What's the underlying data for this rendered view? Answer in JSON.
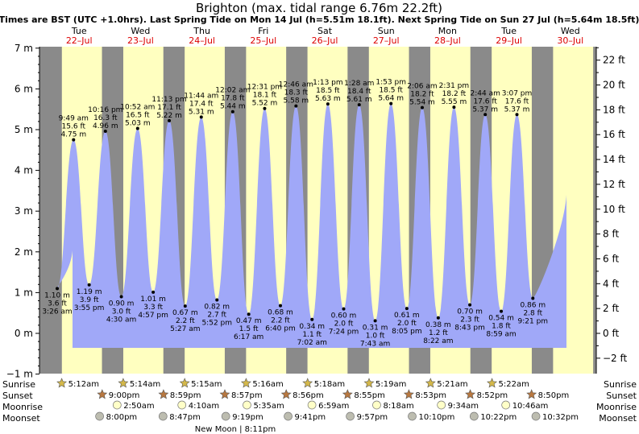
{
  "header": {
    "title": "Brighton (max. tidal range 6.76m 22.2ft)",
    "subtitle": "Times are BST (UTC +1.0hrs). Last Spring Tide on Mon 14 Jul (h=5.51m 18.1ft). Next Spring Tide on Sun 27 Jul (h=5.64m 18.5ft)"
  },
  "days": [
    {
      "day": "Tue",
      "date": "22–Jul"
    },
    {
      "day": "Wed",
      "date": "23–Jul"
    },
    {
      "day": "Thu",
      "date": "24–Jul"
    },
    {
      "day": "Fri",
      "date": "25–Jul"
    },
    {
      "day": "Sat",
      "date": "26–Jul"
    },
    {
      "day": "Sun",
      "date": "27–Jul"
    },
    {
      "day": "Mon",
      "date": "28–Jul"
    },
    {
      "day": "Tue",
      "date": "29–Jul"
    },
    {
      "day": "Wed",
      "date": "30–Jul"
    }
  ],
  "rows": {
    "sunrise": "Sunrise",
    "sunset": "Sunset",
    "moonrise": "Moonrise",
    "moonset": "Moonset"
  },
  "moon_phase": "New Moon | 8:11pm",
  "colors": {
    "night": "#8a8a8a",
    "day": "#ffffc0",
    "water": "#a0a8f8",
    "sun": "#d4b84a",
    "sunset": "#b87840",
    "moon": "#ffffc8",
    "moonset": "#bdbdb0",
    "date": "#dd0000"
  },
  "chart_data": {
    "type": "area",
    "y_left": {
      "unit": "m",
      "min": -1,
      "max": 7,
      "ticks": [
        "−1 m",
        "0 m",
        "1 m",
        "2 m",
        "3 m",
        "4 m",
        "5 m",
        "6 m",
        "7 m"
      ]
    },
    "y_right": {
      "unit": "ft",
      "ticks": [
        "−2 ft",
        "0 ft",
        "2 ft",
        "4 ft",
        "6 ft",
        "8 ft",
        "10 ft",
        "12 ft",
        "14 ft",
        "16 ft",
        "18 ft",
        "20 ft",
        "22 ft"
      ]
    },
    "x_range_days": [
      "2025-07-21 20:30",
      "2025-07-30 20:00"
    ],
    "tides": [
      {
        "d": 0,
        "t": "3:26 am",
        "m": "1.10 m",
        "ft": "3.6 ft",
        "h": 1.1,
        "low": true
      },
      {
        "d": 0,
        "t": "9:49 am",
        "m": "4.75 m",
        "ft": "15.6 ft",
        "h": 4.75,
        "low": false
      },
      {
        "d": 0,
        "t": "3:55 pm",
        "m": "1.19 m",
        "ft": "3.9 ft",
        "h": 1.19,
        "low": true
      },
      {
        "d": 0,
        "t": "10:16 pm",
        "m": "4.96 m",
        "ft": "16.3 ft",
        "h": 4.96,
        "low": false
      },
      {
        "d": 1,
        "t": "4:30 am",
        "m": "0.90 m",
        "ft": "3.0 ft",
        "h": 0.9,
        "low": true
      },
      {
        "d": 1,
        "t": "10:52 am",
        "m": "5.03 m",
        "ft": "16.5 ft",
        "h": 5.03,
        "low": false
      },
      {
        "d": 1,
        "t": "4:57 pm",
        "m": "1.01 m",
        "ft": "3.3 ft",
        "h": 1.01,
        "low": true
      },
      {
        "d": 1,
        "t": "11:13 pm",
        "m": "5.22 m",
        "ft": "17.1 ft",
        "h": 5.22,
        "low": false
      },
      {
        "d": 2,
        "t": "5:27 am",
        "m": "0.67 m",
        "ft": "2.2 ft",
        "h": 0.67,
        "low": true
      },
      {
        "d": 2,
        "t": "11:44 am",
        "m": "5.31 m",
        "ft": "17.4 ft",
        "h": 5.31,
        "low": false
      },
      {
        "d": 2,
        "t": "5:52 pm",
        "m": "0.82 m",
        "ft": "2.7 ft",
        "h": 0.82,
        "low": true
      },
      {
        "d": 3,
        "t": "12:02 am",
        "m": "5.44 m",
        "ft": "17.8 ft",
        "h": 5.44,
        "low": false
      },
      {
        "d": 3,
        "t": "6:17 am",
        "m": "0.47 m",
        "ft": "1.5 ft",
        "h": 0.47,
        "low": true
      },
      {
        "d": 3,
        "t": "12:31 pm",
        "m": "5.52 m",
        "ft": "18.1 ft",
        "h": 5.52,
        "low": false
      },
      {
        "d": 3,
        "t": "6:40 pm",
        "m": "0.68 m",
        "ft": "2.2 ft",
        "h": 0.68,
        "low": true
      },
      {
        "d": 4,
        "t": "12:46 am",
        "m": "5.58 m",
        "ft": "18.3 ft",
        "h": 5.58,
        "low": false
      },
      {
        "d": 4,
        "t": "7:02 am",
        "m": "0.34 m",
        "ft": "1.1 ft",
        "h": 0.34,
        "low": true
      },
      {
        "d": 4,
        "t": "1:13 pm",
        "m": "5.63 m",
        "ft": "18.5 ft",
        "h": 5.63,
        "low": false
      },
      {
        "d": 4,
        "t": "7:24 pm",
        "m": "0.60 m",
        "ft": "2.0 ft",
        "h": 0.6,
        "low": true
      },
      {
        "d": 5,
        "t": "1:28 am",
        "m": "5.61 m",
        "ft": "18.4 ft",
        "h": 5.61,
        "low": false
      },
      {
        "d": 5,
        "t": "7:43 am",
        "m": "0.31 m",
        "ft": "1.0 ft",
        "h": 0.31,
        "low": true
      },
      {
        "d": 5,
        "t": "1:53 pm",
        "m": "5.64 m",
        "ft": "18.5 ft",
        "h": 5.64,
        "low": false
      },
      {
        "d": 5,
        "t": "8:05 pm",
        "m": "0.61 m",
        "ft": "2.0 ft",
        "h": 0.61,
        "low": true
      },
      {
        "d": 6,
        "t": "2:06 am",
        "m": "5.54 m",
        "ft": "18.2 ft",
        "h": 5.54,
        "low": false
      },
      {
        "d": 6,
        "t": "8:22 am",
        "m": "0.38 m",
        "ft": "1.2 ft",
        "h": 0.38,
        "low": true
      },
      {
        "d": 6,
        "t": "2:31 pm",
        "m": "5.55 m",
        "ft": "18.2 ft",
        "h": 5.55,
        "low": false
      },
      {
        "d": 6,
        "t": "8:43 pm",
        "m": "0.70 m",
        "ft": "2.3 ft",
        "h": 0.7,
        "low": true
      },
      {
        "d": 7,
        "t": "2:44 am",
        "m": "5.37 m",
        "ft": "17.6 ft",
        "h": 5.37,
        "low": false
      },
      {
        "d": 7,
        "t": "8:59 am",
        "m": "0.54 m",
        "ft": "1.8 ft",
        "h": 0.54,
        "low": true
      },
      {
        "d": 7,
        "t": "3:07 pm",
        "m": "5.37 m",
        "ft": "17.6 ft",
        "h": 5.37,
        "low": false
      },
      {
        "d": 7,
        "t": "9:21 pm",
        "m": "0.86 m",
        "ft": "2.8 ft",
        "h": 0.86,
        "low": true
      }
    ],
    "sunrise": [
      "5:12am",
      "5:14am",
      "5:15am",
      "5:16am",
      "5:18am",
      "5:19am",
      "5:21am",
      "5:22am"
    ],
    "sunset": [
      "9:00pm",
      "8:59pm",
      "8:57pm",
      "8:56pm",
      "8:55pm",
      "8:53pm",
      "8:52pm",
      "8:50pm"
    ],
    "moonrise": [
      "2:50am",
      "4:10am",
      "5:35am",
      "6:59am",
      "8:18am",
      "9:34am",
      "10:46am"
    ],
    "moonset": [
      "8:00pm",
      "8:47pm",
      "9:19pm",
      "9:41pm",
      "9:57pm",
      "10:10pm",
      "10:22pm",
      "10:32pm"
    ]
  }
}
